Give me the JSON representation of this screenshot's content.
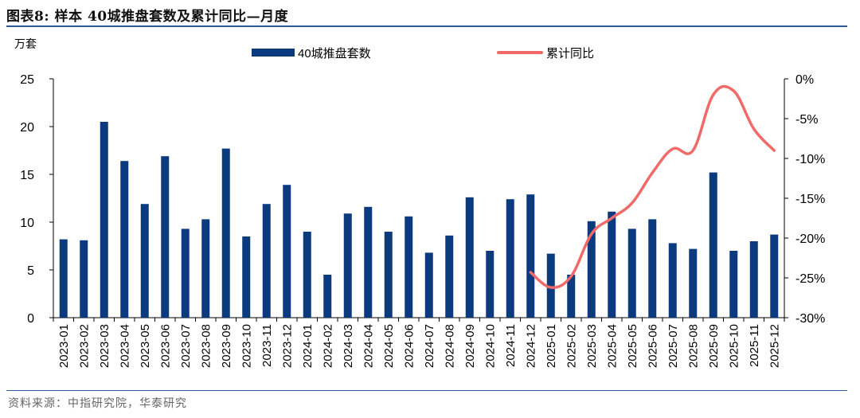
{
  "header": {
    "title": "图表8:  样本 40城推盘套数及累计同比—月度"
  },
  "footer": {
    "source": "资料来源：中指研究院，华泰研究"
  },
  "chart_data": {
    "type": "bar",
    "title": "样本 40城推盘套数及累计同比—月度",
    "ylabel_left": "万套",
    "ylim_left": [
      0,
      25
    ],
    "yticks_left": [
      "0",
      "5",
      "10",
      "15",
      "20",
      "25"
    ],
    "ylim_right": [
      -30,
      0
    ],
    "yticks_right": [
      "-30%",
      "-25%",
      "-20%",
      "-15%",
      "-10%",
      "-5%",
      "0%"
    ],
    "categories": [
      "2023-01",
      "2023-02",
      "2023-03",
      "2023-04",
      "2023-05",
      "2023-06",
      "2023-07",
      "2023-08",
      "2023-09",
      "2023-10",
      "2023-11",
      "2023-12",
      "2024-01",
      "2024-02",
      "2024-03",
      "2024-04",
      "2024-05",
      "2024-06",
      "2024-07",
      "2024-08",
      "2024-09",
      "2024-10",
      "2024-11",
      "2024-12",
      "2025-01",
      "2025-02",
      "2025-03",
      "2025-04",
      "2025-05",
      "2025-06",
      "2025-07",
      "2025-08",
      "2025-09",
      "2025-10",
      "2025-11",
      "2025-12"
    ],
    "series": [
      {
        "name": "40城推盘套数",
        "type": "bar",
        "axis": "left",
        "color": "#0b3a7e",
        "values": [
          8.2,
          8.1,
          20.5,
          16.4,
          11.9,
          16.9,
          9.3,
          10.3,
          17.7,
          8.5,
          11.9,
          13.9,
          9.0,
          4.5,
          10.9,
          11.6,
          9.0,
          10.6,
          6.8,
          8.6,
          12.6,
          7.0,
          12.4,
          12.9,
          6.7,
          4.5,
          10.1,
          11.1,
          9.3,
          10.3,
          7.8,
          7.2,
          15.2,
          7.0,
          8.0,
          8.7
        ]
      },
      {
        "name": "累计同比",
        "type": "line",
        "axis": "right",
        "color": "#f06a6a",
        "values": [
          null,
          null,
          null,
          null,
          null,
          null,
          null,
          null,
          null,
          null,
          null,
          null,
          null,
          null,
          null,
          null,
          null,
          null,
          null,
          null,
          null,
          null,
          null,
          -24.3,
          -26.2,
          -24.8,
          -19.5,
          -17.5,
          -15.6,
          -11.8,
          -8.8,
          -9.0,
          -2.0,
          -1.5,
          -6.3,
          -9.0
        ]
      }
    ]
  }
}
